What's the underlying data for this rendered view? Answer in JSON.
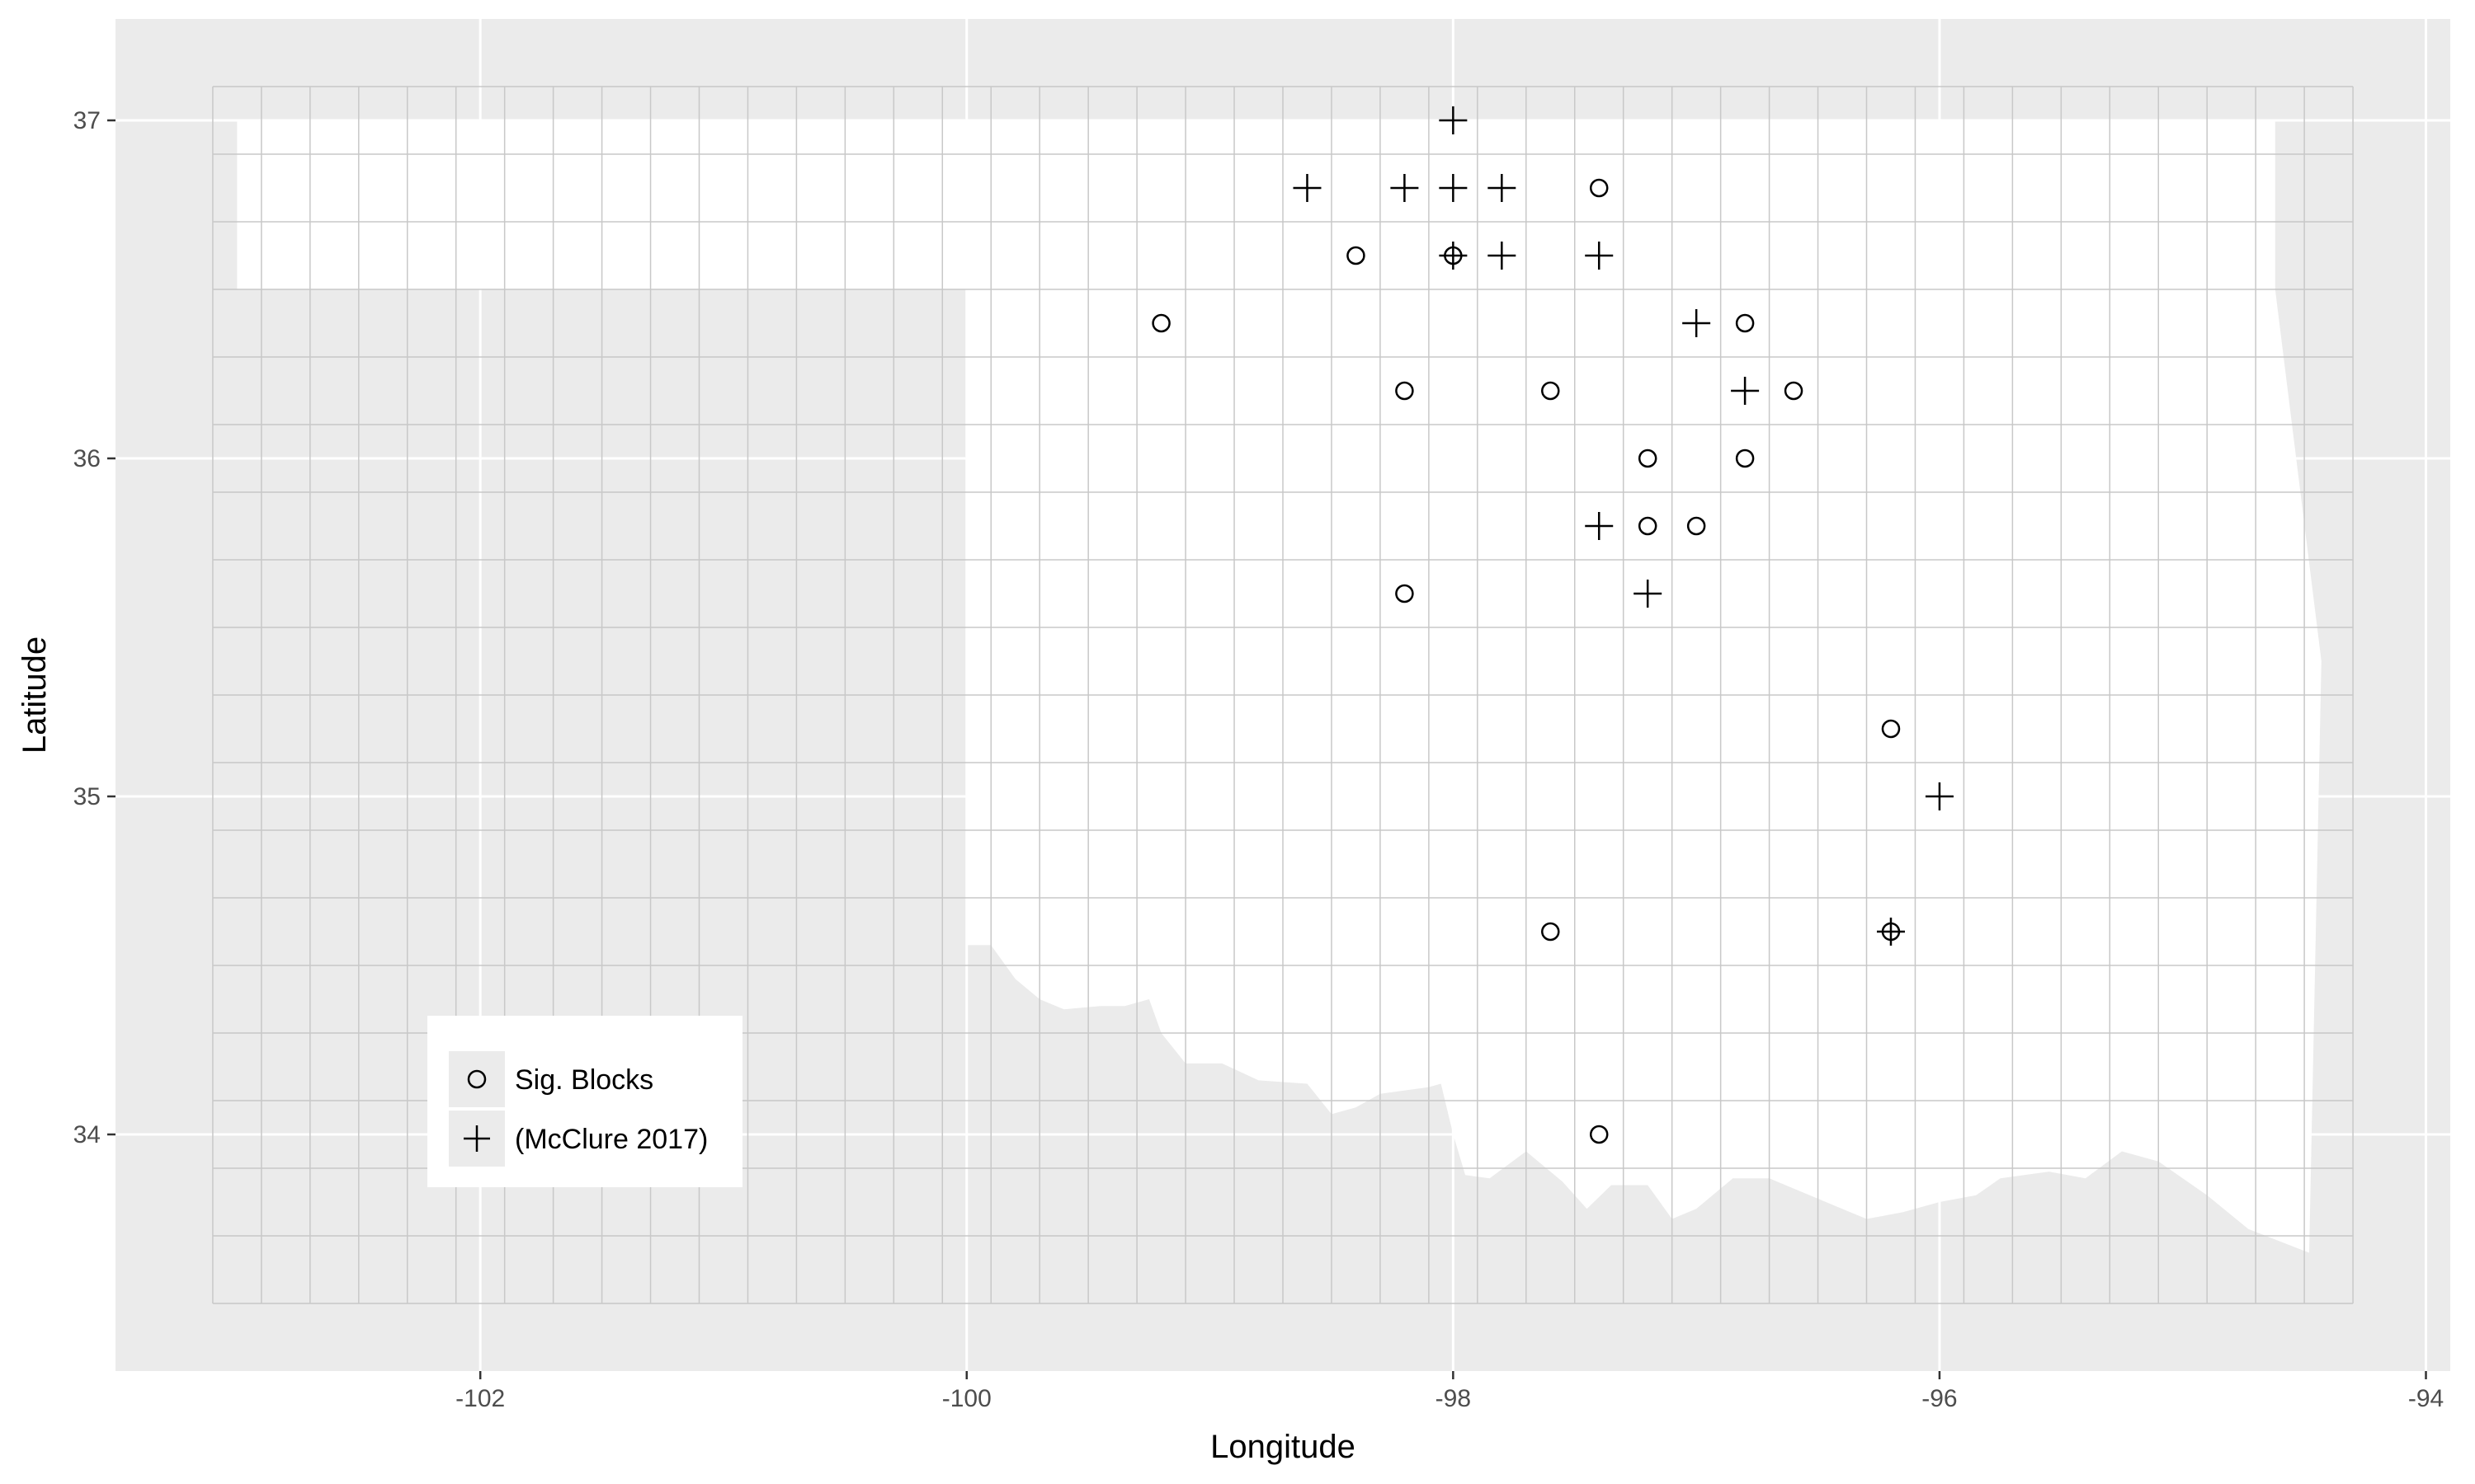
{
  "chart_data": {
    "type": "scatter",
    "title": "",
    "xlabel": "Longitude",
    "ylabel": "Latitude",
    "xlim": [
      -103.5,
      -93.9
    ],
    "ylim": [
      33.3,
      37.3
    ],
    "x_ticks": [
      -102,
      -100,
      -98,
      -96,
      -94
    ],
    "x_tick_labels": [
      "-102",
      "-100",
      "-98",
      "-96",
      "-94"
    ],
    "y_ticks": [
      34,
      35,
      36,
      37
    ],
    "y_tick_labels": [
      "34",
      "35",
      "36",
      "37"
    ],
    "grid": true,
    "block_grid": {
      "lon_start": -103.1,
      "lon_end": -94.3,
      "lon_step": 0.2,
      "lat_start": 33.5,
      "lat_end": 37.1,
      "lat_step": 0.2
    },
    "legend_placement": "bottom-left",
    "colors": {
      "panel": "#ebebeb",
      "major_grid": "#ffffff",
      "block_grid": "#c8c8c8",
      "state_fill": "#ffffff",
      "marker": "#000000"
    },
    "series": [
      {
        "name": "Sig. Blocks",
        "marker": "circle",
        "points": [
          [
            -97.4,
            36.8
          ],
          [
            -98.4,
            36.6
          ],
          [
            -98.0,
            36.6
          ],
          [
            -99.2,
            36.4
          ],
          [
            -96.8,
            36.4
          ],
          [
            -98.2,
            36.2
          ],
          [
            -97.6,
            36.2
          ],
          [
            -96.6,
            36.2
          ],
          [
            -97.2,
            36.0
          ],
          [
            -96.8,
            36.0
          ],
          [
            -97.2,
            35.8
          ],
          [
            -97.0,
            35.8
          ],
          [
            -98.2,
            35.6
          ],
          [
            -96.2,
            35.2
          ],
          [
            -97.6,
            34.6
          ],
          [
            -96.2,
            34.6
          ],
          [
            -97.4,
            34.0
          ]
        ]
      },
      {
        "name": "(McClure 2017)",
        "marker": "plus",
        "points": [
          [
            -98.0,
            37.0
          ],
          [
            -98.6,
            36.8
          ],
          [
            -98.2,
            36.8
          ],
          [
            -98.0,
            36.8
          ],
          [
            -97.8,
            36.8
          ],
          [
            -98.0,
            36.6
          ],
          [
            -97.8,
            36.6
          ],
          [
            -97.4,
            36.6
          ],
          [
            -97.0,
            36.4
          ],
          [
            -96.8,
            36.2
          ],
          [
            -97.4,
            35.8
          ],
          [
            -97.2,
            35.6
          ],
          [
            -96.0,
            35.0
          ],
          [
            -96.2,
            34.6
          ]
        ]
      }
    ],
    "state_outline": [
      [
        -103.0,
        37.0
      ],
      [
        -94.62,
        37.0
      ],
      [
        -94.62,
        36.5
      ],
      [
        -94.43,
        35.4
      ],
      [
        -94.48,
        33.65
      ],
      [
        -94.73,
        33.72
      ],
      [
        -94.9,
        33.82
      ],
      [
        -95.1,
        33.92
      ],
      [
        -95.25,
        33.95
      ],
      [
        -95.4,
        33.87
      ],
      [
        -95.55,
        33.89
      ],
      [
        -95.75,
        33.87
      ],
      [
        -95.85,
        33.82
      ],
      [
        -96.0,
        33.8
      ],
      [
        -96.15,
        33.77
      ],
      [
        -96.3,
        33.75
      ],
      [
        -96.4,
        33.78
      ],
      [
        -96.6,
        33.84
      ],
      [
        -96.7,
        33.87
      ],
      [
        -96.85,
        33.87
      ],
      [
        -97.0,
        33.78
      ],
      [
        -97.1,
        33.75
      ],
      [
        -97.2,
        33.85
      ],
      [
        -97.35,
        33.85
      ],
      [
        -97.45,
        33.78
      ],
      [
        -97.55,
        33.86
      ],
      [
        -97.7,
        33.95
      ],
      [
        -97.85,
        33.87
      ],
      [
        -97.95,
        33.88
      ],
      [
        -98.0,
        34.0
      ],
      [
        -98.05,
        34.15
      ],
      [
        -98.1,
        34.14
      ],
      [
        -98.3,
        34.12
      ],
      [
        -98.4,
        34.08
      ],
      [
        -98.5,
        34.06
      ],
      [
        -98.6,
        34.15
      ],
      [
        -98.8,
        34.16
      ],
      [
        -98.95,
        34.21
      ],
      [
        -99.1,
        34.21
      ],
      [
        -99.2,
        34.3
      ],
      [
        -99.25,
        34.4
      ],
      [
        -99.35,
        34.38
      ],
      [
        -99.45,
        34.38
      ],
      [
        -99.6,
        34.37
      ],
      [
        -99.7,
        34.4
      ],
      [
        -99.8,
        34.46
      ],
      [
        -99.9,
        34.56
      ],
      [
        -100.0,
        34.56
      ],
      [
        -100.0,
        36.5
      ],
      [
        -103.0,
        36.5
      ]
    ],
    "legend_entries": [
      "Sig. Blocks",
      "(McClure 2017)"
    ]
  }
}
